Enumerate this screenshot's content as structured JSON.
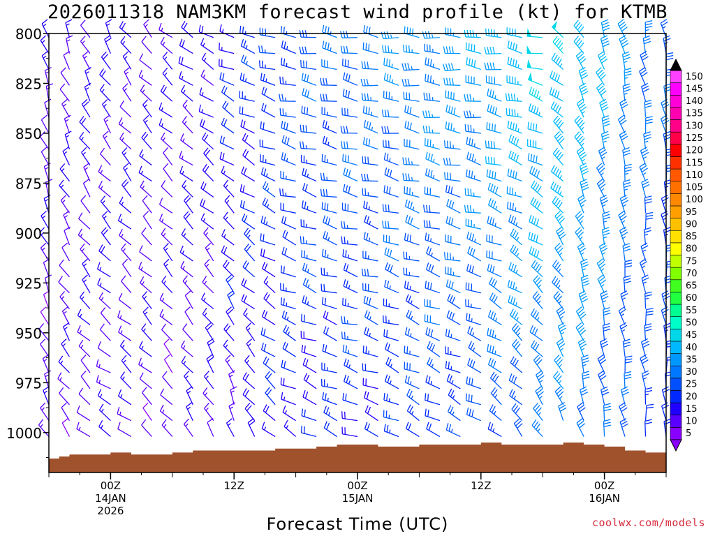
{
  "chart_data": {
    "type": "wind_barb_time_height",
    "title": "2026011318 NAM3KM forecast wind profile (kt) for KTMB",
    "xlabel": "Forecast Time (UTC)",
    "ylabel": "",
    "credit": "coolwx.com/models",
    "y_axis": {
      "unit": "hPa",
      "range": [
        800,
        1020
      ],
      "inverted": true,
      "ticks": [
        "800",
        "825",
        "850",
        "875",
        "900",
        "925",
        "950",
        "975",
        "1000"
      ]
    },
    "x_axis": {
      "unit": "forecast hour from 2026011318",
      "range": [
        0,
        60
      ],
      "ticks": [
        {
          "hour": 6,
          "line1": "00Z",
          "line2": "14JAN",
          "line3": "2026"
        },
        {
          "hour": 18,
          "line1": "12Z",
          "line2": "",
          "line3": ""
        },
        {
          "hour": 30,
          "line1": "00Z",
          "line2": "15JAN",
          "line3": ""
        },
        {
          "hour": 42,
          "line1": "12Z",
          "line2": "",
          "line3": ""
        },
        {
          "hour": 54,
          "line1": "00Z",
          "line2": "16JAN",
          "line3": ""
        }
      ]
    },
    "colorbar": {
      "levels": [
        "5",
        "10",
        "15",
        "20",
        "25",
        "30",
        "35",
        "40",
        "45",
        "50",
        "55",
        "60",
        "65",
        "70",
        "75",
        "80",
        "85",
        "90",
        "95",
        "100",
        "105",
        "110",
        "115",
        "120",
        "125",
        "130",
        "135",
        "140",
        "145",
        "150"
      ],
      "colors": [
        "#8a00ff",
        "#5a00ff",
        "#2000ff",
        "#0028ff",
        "#0050ff",
        "#0078ff",
        "#0098ff",
        "#00b8ff",
        "#00d8e8",
        "#00ffc8",
        "#00ff90",
        "#20ff40",
        "#40ff20",
        "#80ff00",
        "#c0ff00",
        "#ffff00",
        "#ffe000",
        "#ffc000",
        "#ffa000",
        "#ff8800",
        "#ff7000",
        "#ff5800",
        "#ff3000",
        "#ff0000",
        "#ff0048",
        "#ff0088",
        "#ff00b0",
        "#ff00d8",
        "#ff00ff",
        "#ff40ff"
      ],
      "under_color": "#8a00ff",
      "over_color": "#000000"
    },
    "terrain": {
      "color": "#a0522d",
      "hours": [
        0,
        1,
        2,
        4,
        6,
        8,
        10,
        12,
        14,
        16,
        18,
        20,
        22,
        24,
        26,
        28,
        30,
        32,
        34,
        36,
        38,
        40,
        42,
        44,
        46,
        48,
        50,
        52,
        54,
        56,
        58,
        60
      ],
      "surface": [
        1013,
        1012,
        1011,
        1011,
        1010,
        1011,
        1011,
        1010,
        1009,
        1009,
        1009,
        1009,
        1008,
        1008,
        1007,
        1006,
        1006,
        1007,
        1007,
        1006,
        1006,
        1006,
        1005,
        1006,
        1006,
        1006,
        1005,
        1006,
        1007,
        1009,
        1010,
        1012
      ]
    },
    "wind_field": {
      "hours_step": 2,
      "levels_hPa": [
        802,
        810,
        818,
        826,
        834,
        842,
        850,
        858,
        866,
        874,
        882,
        890,
        898,
        906,
        914,
        922,
        930,
        938,
        946,
        954,
        962,
        970,
        978,
        986,
        994,
        1002,
        1010
      ],
      "key_times": [
        {
          "hour": 0,
          "low_dir": 330,
          "low_spd": 12,
          "high_dir": 340,
          "high_spd": 14
        },
        {
          "hour": 6,
          "low_dir": 300,
          "low_spd": 14,
          "high_dir": 330,
          "high_spd": 16
        },
        {
          "hour": 12,
          "low_dir": 320,
          "low_spd": 12,
          "high_dir": 310,
          "high_spd": 15
        },
        {
          "hour": 18,
          "low_dir": 340,
          "low_spd": 16,
          "high_dir": 290,
          "high_spd": 20
        },
        {
          "hour": 24,
          "low_dir": 300,
          "low_spd": 18,
          "high_dir": 280,
          "high_spd": 28
        },
        {
          "hour": 30,
          "low_dir": 290,
          "low_spd": 20,
          "high_dir": 280,
          "high_spd": 32
        },
        {
          "hour": 36,
          "low_dir": 300,
          "low_spd": 22,
          "high_dir": 275,
          "high_spd": 36
        },
        {
          "hour": 42,
          "low_dir": 300,
          "low_spd": 24,
          "high_dir": 275,
          "high_spd": 40
        },
        {
          "hour": 48,
          "low_dir": 330,
          "low_spd": 30,
          "high_dir": 280,
          "high_spd": 48
        },
        {
          "hour": 52,
          "low_dir": 345,
          "low_spd": 32,
          "high_dir": 330,
          "high_spd": 44
        },
        {
          "hour": 56,
          "low_dir": 350,
          "low_spd": 26,
          "high_dir": 345,
          "high_spd": 36
        },
        {
          "hour": 60,
          "low_dir": 355,
          "low_spd": 22,
          "high_dir": 350,
          "high_spd": 30
        }
      ]
    }
  }
}
